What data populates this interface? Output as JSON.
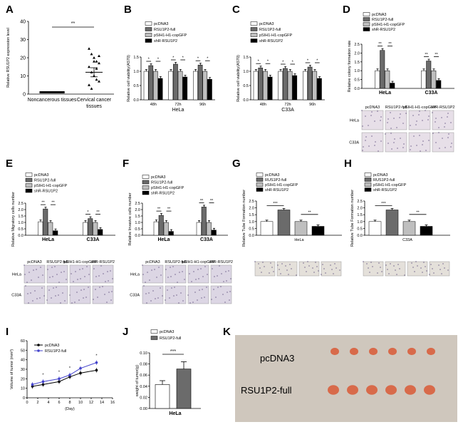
{
  "panel_letters": [
    "A",
    "B",
    "C",
    "D",
    "E",
    "F",
    "G",
    "H",
    "I",
    "J",
    "K"
  ],
  "chart_data": [
    {
      "panel": "A",
      "type": "scatter",
      "ylabel": "Relative RSU1P2 expression level",
      "yticks": [
        0,
        10,
        20,
        30,
        40
      ],
      "ylim": [
        0,
        40
      ],
      "categories": [
        "Noncancerous tissues",
        "Cervical cancer tissues"
      ],
      "points": [
        [
          1,
          1,
          1,
          1,
          1,
          1,
          1,
          1,
          1,
          1,
          1,
          1,
          1,
          1,
          1
        ],
        [
          25,
          22,
          20,
          18,
          17,
          15,
          12,
          10,
          8,
          7,
          5,
          3,
          18,
          14,
          21
        ]
      ],
      "means": [
        1,
        12
      ],
      "sem": [
        0.3,
        2.5
      ],
      "significance": "**"
    },
    {
      "panel": "B",
      "type": "bar",
      "ylabel": "Relative cell viability(A570)",
      "xlabel": "HeLa",
      "categories": [
        "48h",
        "72h",
        "96h"
      ],
      "legend": [
        "pcDNA3",
        "RSU1P2-full",
        "pSIH1-H1-copGFP",
        "shR-RSU1P2"
      ],
      "series_colors": [
        "#ffffff",
        "#6b6b6b",
        "#bfbfbf",
        "#000000"
      ],
      "series": [
        {
          "name": "pcDNA3",
          "values": [
            1.0,
            1.0,
            1.0
          ]
        },
        {
          "name": "RSU1P2-full",
          "values": [
            1.2,
            1.25,
            1.22
          ]
        },
        {
          "name": "pSIH1-H1-copGFP",
          "values": [
            1.0,
            1.0,
            1.0
          ]
        },
        {
          "name": "shR-RSU1P2",
          "values": [
            0.75,
            0.8,
            0.72
          ]
        }
      ],
      "yticks": [
        "0.0",
        "0.5",
        "1.0",
        "1.5"
      ],
      "ylim": [
        0,
        1.5
      ],
      "significance": [
        "*",
        "*",
        "*",
        "*",
        "*",
        "*"
      ]
    },
    {
      "panel": "C",
      "type": "bar",
      "ylabel": "Relative cell viability(A570)",
      "xlabel": "C33A",
      "categories": [
        "48h",
        "72h",
        "96h"
      ],
      "legend": [
        "pcDNA3",
        "RSU1P2-full",
        "pSIH1-H1-copGFP",
        "shR-RSU1P2"
      ],
      "series_colors": [
        "#ffffff",
        "#6b6b6b",
        "#bfbfbf",
        "#000000"
      ],
      "series": [
        {
          "name": "pcDNA3",
          "values": [
            1.0,
            1.0,
            1.0
          ]
        },
        {
          "name": "RSU1P2-full",
          "values": [
            1.12,
            1.1,
            1.15
          ]
        },
        {
          "name": "pSIH1-H1-copGFP",
          "values": [
            1.0,
            1.0,
            1.0
          ]
        },
        {
          "name": "shR-RSU1P2",
          "values": [
            0.8,
            0.85,
            0.75
          ]
        }
      ],
      "yticks": [
        "0.0",
        "0.5",
        "1.0",
        "1.5"
      ],
      "ylim": [
        0,
        1.5
      ],
      "significance": [
        "*",
        "*",
        "*",
        "*",
        "*",
        "*"
      ]
    },
    {
      "panel": "D",
      "type": "bar",
      "ylabel": "Relative colony formation rate",
      "categories": [
        "HeLa",
        "C33A"
      ],
      "legend": [
        "pcDNA3",
        "RSU1P2-full",
        "pSIH1-H1-copGFP",
        "shR-RSU1P2"
      ],
      "series_colors": [
        "#ffffff",
        "#6b6b6b",
        "#bfbfbf",
        "#000000"
      ],
      "series": [
        {
          "name": "pcDNA3",
          "values": [
            1.0,
            1.0
          ]
        },
        {
          "name": "RSU1P2-full",
          "values": [
            2.15,
            1.55
          ]
        },
        {
          "name": "pSIH1-H1-copGFP",
          "values": [
            1.0,
            1.0
          ]
        },
        {
          "name": "shR-RSU1P2",
          "values": [
            0.3,
            0.45
          ]
        }
      ],
      "yticks": [
        "0.0",
        "0.5",
        "1.0",
        "1.5",
        "2.0",
        "2.5"
      ],
      "ylim": [
        0,
        2.5
      ],
      "significance": [
        "**",
        "**",
        "**",
        "**"
      ],
      "image_col_labels": [
        "pcDNA3",
        "RSU1P2-full",
        "pSIH1-H1-copGFP",
        "shR-RSU1P2"
      ],
      "image_row_labels": [
        "HeLa",
        "C33A"
      ]
    },
    {
      "panel": "E",
      "type": "bar",
      "ylabel": "Relative Migratory cells number",
      "categories": [
        "HeLa",
        "C33A"
      ],
      "legend": [
        "pcDNA3",
        "RSU1P2-full",
        "pSIH1-H1-copGFP",
        "shR-RSU1P2"
      ],
      "series_colors": [
        "#ffffff",
        "#6b6b6b",
        "#bfbfbf",
        "#000000"
      ],
      "series": [
        {
          "name": "pcDNA3",
          "values": [
            1.05,
            1.0
          ]
        },
        {
          "name": "RSU1P2-full",
          "values": [
            2.05,
            1.3
          ]
        },
        {
          "name": "pSIH1-H1-copGFP",
          "values": [
            1.0,
            1.0
          ]
        },
        {
          "name": "shR-RSU1P2",
          "values": [
            0.35,
            0.45
          ]
        }
      ],
      "yticks": [
        "0.0",
        "0.5",
        "1.0",
        "1.5",
        "2.0",
        "2.5"
      ],
      "ylim": [
        0,
        2.5
      ],
      "significance": [
        "**",
        "**",
        "*",
        "**"
      ],
      "image_col_labels": [
        "pcDNA3",
        "RSU1P2-full",
        "pSIH1-H1-copGFP",
        "shR-RSU1P2"
      ],
      "image_row_labels": [
        "HeLa",
        "C33A"
      ]
    },
    {
      "panel": "F",
      "type": "bar",
      "ylabel": "Relative Invasive cells number",
      "categories": [
        "HeLa",
        "C33A"
      ],
      "legend": [
        "pcDNA3",
        "RSU1P2-full",
        "pSIH1-H1-copGFP",
        "shR-RSU1P2"
      ],
      "series_colors": [
        "#ffffff",
        "#6b6b6b",
        "#bfbfbf",
        "#000000"
      ],
      "series": [
        {
          "name": "pcDNA3",
          "values": [
            1.05,
            1.0
          ]
        },
        {
          "name": "RSU1P2-full",
          "values": [
            1.55,
            2.2
          ]
        },
        {
          "name": "pSIH1-H1-copGFP",
          "values": [
            1.0,
            1.0
          ]
        },
        {
          "name": "shR-RSU1P2",
          "values": [
            0.3,
            0.4
          ]
        }
      ],
      "yticks": [
        "0.0",
        "0.5",
        "1.0",
        "1.5",
        "2.0",
        "2.5"
      ],
      "ylim": [
        0,
        2.5
      ],
      "significance": [
        "**",
        "**",
        "**",
        "**"
      ],
      "image_col_labels": [
        "pcDNA3",
        "RSU1P2-full",
        "pSIH1-H1-copGFP",
        "shR-RSU1P2"
      ],
      "image_row_labels": [
        "HeLa",
        "C33A"
      ]
    },
    {
      "panel": "G",
      "type": "bar",
      "ylabel": "Relative Tube Formation number",
      "xlabel": "HeLa",
      "legend": [
        "pcDNA3",
        "RUS1P2-full",
        "pSIH1-H1-copGFP",
        "shR-RSU1P2"
      ],
      "series_colors": [
        "#ffffff",
        "#6b6b6b",
        "#bfbfbf",
        "#000000"
      ],
      "values": [
        1.0,
        1.85,
        1.0,
        0.65
      ],
      "yticks": [
        "0.0",
        "0.5",
        "1.0",
        "1.5",
        "2.0",
        "2.5"
      ],
      "ylim": [
        0,
        2.5
      ],
      "significance": [
        "***",
        "**"
      ]
    },
    {
      "panel": "H",
      "type": "bar",
      "ylabel": "Relative Tube Formation number",
      "xlabel": "C33A",
      "legend": [
        "pcDNA3",
        "RUS1P2-full",
        "pSIH1-H1-copGFP",
        "shR-RSU1P2"
      ],
      "series_colors": [
        "#ffffff",
        "#6b6b6b",
        "#bfbfbf",
        "#000000"
      ],
      "values": [
        1.0,
        1.85,
        1.0,
        0.65
      ],
      "yticks": [
        "0.0",
        "0.5",
        "1.0",
        "1.5",
        "2.0",
        "2.5"
      ],
      "ylim": [
        0,
        2.5
      ],
      "significance": [
        "***",
        "**"
      ]
    },
    {
      "panel": "I",
      "type": "line",
      "ylabel": "Volume of tumor (mm³)",
      "xlabel": "(Day)",
      "x": [
        1,
        3,
        6,
        8,
        10,
        13
      ],
      "xticks": [
        0,
        2,
        4,
        6,
        8,
        10,
        12,
        14,
        16
      ],
      "yticks": [
        0,
        10,
        20,
        30,
        40,
        50,
        60
      ],
      "ylim": [
        0,
        60
      ],
      "series": [
        {
          "name": "pcDNA3",
          "values": [
            12,
            14,
            17,
            22,
            26,
            29
          ],
          "color": "#000000"
        },
        {
          "name": "RSU1P2-full",
          "values": [
            14,
            17,
            20,
            24,
            31,
            37
          ],
          "color": "#4444cc"
        }
      ],
      "significance": [
        "*",
        "*",
        "*",
        "*",
        "*"
      ]
    },
    {
      "panel": "J",
      "type": "bar",
      "ylabel": "weight of tumor(g)",
      "xlabel": "HeLa",
      "legend": [
        "pcDNA3",
        "RSU1P2-full"
      ],
      "series_colors": [
        "#ffffff",
        "#6b6b6b"
      ],
      "values": [
        0.043,
        0.071
      ],
      "errors": [
        0.007,
        0.013
      ],
      "yticks": [
        "0.00",
        "0.02",
        "0.04",
        "0.06",
        "0.08",
        "0.10"
      ],
      "ylim": [
        0,
        0.1
      ],
      "significance": "***"
    }
  ],
  "photo_k": {
    "labels": [
      "pcDNA3",
      "RSU1P2-full"
    ],
    "tumor_color": "#d86a4a",
    "background_color": "#cfc7bd"
  }
}
